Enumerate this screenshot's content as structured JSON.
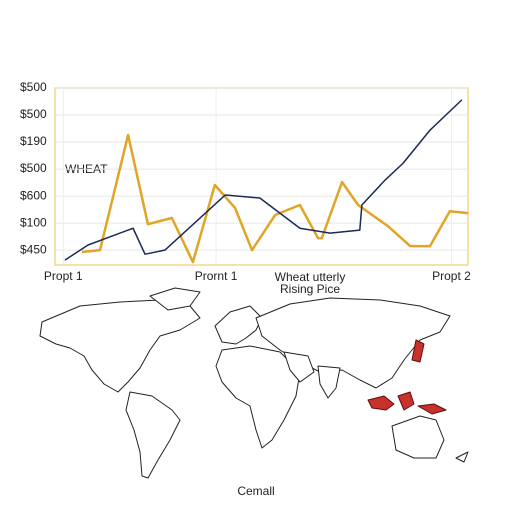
{
  "chart_data": {
    "type": "line",
    "annotations": [
      "WHEAT",
      "Wheat utterly",
      "Rising Pice"
    ],
    "caption": "Cemall",
    "xlim": [
      0,
      100
    ],
    "xticks": [
      {
        "value": 2,
        "label": "Propt 1"
      },
      {
        "value": 39,
        "label": "Prornt 1"
      },
      {
        "value": 96,
        "label": "Propt 2"
      }
    ],
    "ylim": [
      -0.55,
      6
    ],
    "yticks": [
      {
        "value": 6,
        "label": "$500"
      },
      {
        "value": 5,
        "label": "$500"
      },
      {
        "value": 4,
        "label": "$190"
      },
      {
        "value": 3,
        "label": "$500"
      },
      {
        "value": 2,
        "label": "$600"
      },
      {
        "value": 1,
        "label": "$100"
      },
      {
        "value": 0,
        "label": "$450"
      }
    ],
    "grid": true,
    "series": [
      {
        "color": "#e0a526",
        "x": [
          6.5,
          10.9,
          17.7,
          22.5,
          28.3,
          33.4,
          38.7,
          43.6,
          47.7,
          53.3,
          59.3,
          63.7,
          64.6,
          69.5,
          73.4,
          80.6,
          86,
          90.8,
          95.6,
          100
        ],
        "values": [
          -0.07,
          0,
          4.26,
          0.96,
          1.19,
          -0.44,
          2.41,
          1.56,
          0,
          1.3,
          1.67,
          0.44,
          0.44,
          2.52,
          1.67,
          0.89,
          0.15,
          0.15,
          1.44,
          1.37
        ]
      },
      {
        "color": "#1c2a5a",
        "x": [
          2.4,
          8,
          18.9,
          21.8,
          26.6,
          41.2,
          49.6,
          59.3,
          66.6,
          73.8,
          74.3,
          79.9,
          84.3,
          90.8,
          98.5
        ],
        "values": [
          -0.37,
          0.19,
          0.81,
          -0.15,
          0,
          2.04,
          1.93,
          0.81,
          0.63,
          0.74,
          1.67,
          2.59,
          3.22,
          4.44,
          5.56
        ]
      }
    ]
  }
}
